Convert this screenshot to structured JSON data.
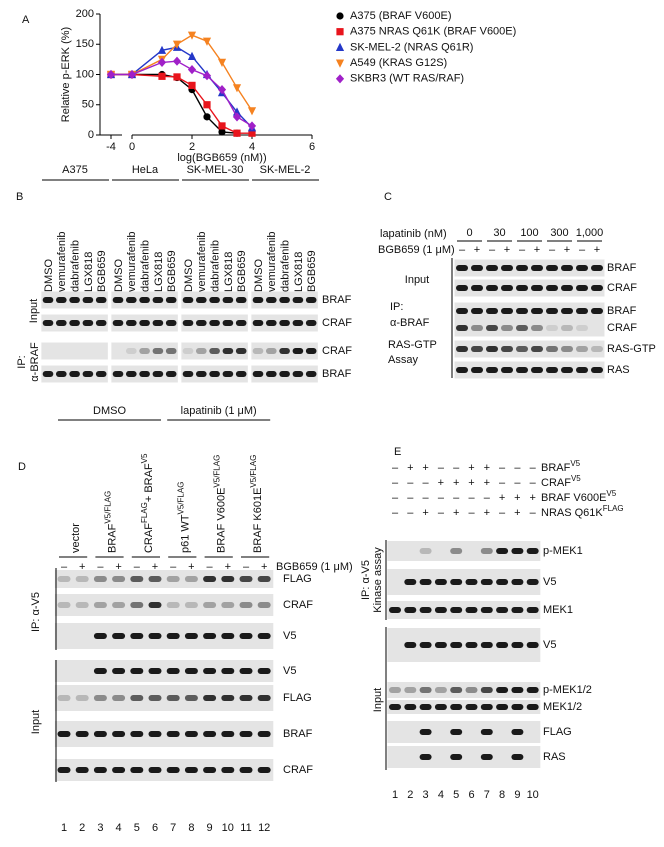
{
  "chart_data": {
    "type": "line",
    "panel": "A",
    "x_label": "log(BGB659 (nM))",
    "y_label": "Relative p-ERK (%)",
    "xlim": [
      -5,
      6
    ],
    "x_break": [
      -3,
      0
    ],
    "xticks": [
      -4,
      0,
      2,
      4,
      6
    ],
    "ylim": [
      0,
      200
    ],
    "yticks": [
      0,
      50,
      100,
      150,
      200
    ],
    "x": [
      -4,
      0,
      1,
      1.5,
      2,
      2.5,
      3,
      3.5,
      4
    ],
    "series": [
      {
        "name": "A375 (BRAF V600E)",
        "color": "#000000",
        "marker": "circle",
        "values": [
          100,
          100,
          100,
          95,
          75,
          30,
          5,
          3,
          null
        ]
      },
      {
        "name": "A375 NRAS Q61K (BRAF V600E)",
        "color": "#e8141c",
        "marker": "square",
        "values": [
          100,
          100,
          97,
          96,
          82,
          50,
          15,
          3,
          3
        ]
      },
      {
        "name": "SK-MEL-2 (NRAS Q61R)",
        "color": "#2437c8",
        "marker": "triangle-up",
        "values": [
          100,
          100,
          140,
          145,
          130,
          100,
          70,
          38,
          12
        ]
      },
      {
        "name": "A549 (KRAS G12S)",
        "color": "#f58220",
        "marker": "triangle-down",
        "values": [
          100,
          100,
          125,
          150,
          165,
          155,
          120,
          78,
          40
        ]
      },
      {
        "name": "SKBR3 (WT RAS/RAF)",
        "color": "#a020c8",
        "marker": "diamond",
        "values": [
          100,
          100,
          120,
          122,
          108,
          98,
          75,
          30,
          15
        ]
      }
    ]
  },
  "panels": {
    "B": {
      "letter": "B",
      "cell_lines": [
        "A375",
        "HeLa",
        "SK-MEL-30",
        "SK-MEL-2"
      ],
      "treatments": [
        "DMSO",
        "vemurafenib",
        "dabrafenib",
        "LGX818",
        "BGB659"
      ],
      "row_groups": [
        {
          "label": [
            "Input"
          ],
          "rows": [
            "BRAF",
            "CRAF"
          ]
        },
        {
          "label": [
            "IP:",
            "α-BRAF"
          ],
          "rows": [
            "CRAF",
            "BRAF"
          ]
        }
      ]
    },
    "C": {
      "letter": "C",
      "lapatinib_label": "lapatinib (nM)",
      "doses": [
        "0",
        "30",
        "100",
        "300",
        "1,000"
      ],
      "bgb_label": "BGB659 (1 μM)",
      "signs": [
        "–",
        "+",
        "–",
        "+",
        "–",
        "+",
        "–",
        "+",
        "–",
        "+"
      ],
      "row_groups": [
        {
          "label": [
            "Input"
          ],
          "rows": [
            "BRAF",
            "CRAF"
          ]
        },
        {
          "label": [
            "IP:",
            "α-BRAF"
          ],
          "rows": [
            "BRAF",
            "CRAF"
          ]
        },
        {
          "label": [
            "RAS-GTP",
            "Assay"
          ],
          "rows": [
            "RAS-GTP",
            "RAS"
          ]
        }
      ]
    },
    "D": {
      "letter": "D",
      "conditions": [
        "DMSO",
        "lapatinib (1 μM)"
      ],
      "constructs": [
        [
          {
            "t": "vector"
          }
        ],
        [
          {
            "t": "BRAF",
            "sup": "V5/FLAG"
          }
        ],
        [
          {
            "t": "CRAF",
            "sup": "FLAG"
          },
          {
            "t": "+ BRAF",
            "sup": "V5"
          }
        ],
        [
          {
            "t": "p61 WT",
            "sup": "V5/FLAG"
          }
        ],
        [
          {
            "t": "BRAF V600E",
            "sup": "V5/FLAG"
          }
        ],
        [
          {
            "t": "BRAF K601E",
            "sup": "V5/FLAG"
          }
        ]
      ],
      "bgb_label": "BGB659 (1 μM)",
      "signs": [
        "–",
        "+",
        "–",
        "+",
        "–",
        "+",
        "–",
        "+",
        "–",
        "+",
        "–",
        "+"
      ],
      "row_groups": [
        {
          "label": [
            "IP: α-V5"
          ],
          "rows": [
            "FLAG",
            "CRAF",
            "V5"
          ]
        },
        {
          "label": [
            "Input"
          ],
          "rows": [
            "V5",
            "FLAG",
            "BRAF",
            "CRAF"
          ]
        }
      ],
      "lanes": [
        1,
        2,
        3,
        4,
        5,
        6,
        7,
        8,
        9,
        10,
        11,
        12
      ]
    },
    "E": {
      "letter": "E",
      "conditions": [
        {
          "label": [
            {
              "t": "BRAF",
              "sup": "V5"
            }
          ],
          "signs": [
            "–",
            "+",
            "+",
            "–",
            "–",
            "+",
            "+",
            "–",
            "–",
            "–"
          ]
        },
        {
          "label": [
            {
              "t": "CRAF",
              "sup": "V5"
            }
          ],
          "signs": [
            "–",
            "–",
            "–",
            "+",
            "+",
            "+",
            "+",
            "–",
            "–",
            "–"
          ]
        },
        {
          "label": [
            {
              "t": "BRAF V600E",
              "sup": "V5"
            }
          ],
          "signs": [
            "–",
            "–",
            "–",
            "–",
            "–",
            "–",
            "–",
            "+",
            "+",
            "+"
          ]
        },
        {
          "label": [
            {
              "t": "NRAS Q61K",
              "sup": "FLAG"
            }
          ],
          "signs": [
            "–",
            "–",
            "+",
            "–",
            "+",
            "–",
            "+",
            "–",
            "+",
            "–"
          ]
        }
      ],
      "row_groups": [
        {
          "label": [
            "IP: α-V5",
            "Kinase assay"
          ],
          "rows": [
            "p-MEK1",
            "V5",
            "MEK1"
          ]
        },
        {
          "label": [
            "Input"
          ],
          "rows": [
            "V5",
            "p-MEK1/2",
            "MEK1/2",
            "FLAG",
            "RAS"
          ]
        }
      ],
      "lanes": [
        1,
        2,
        3,
        4,
        5,
        6,
        7,
        8,
        9,
        10
      ]
    }
  }
}
